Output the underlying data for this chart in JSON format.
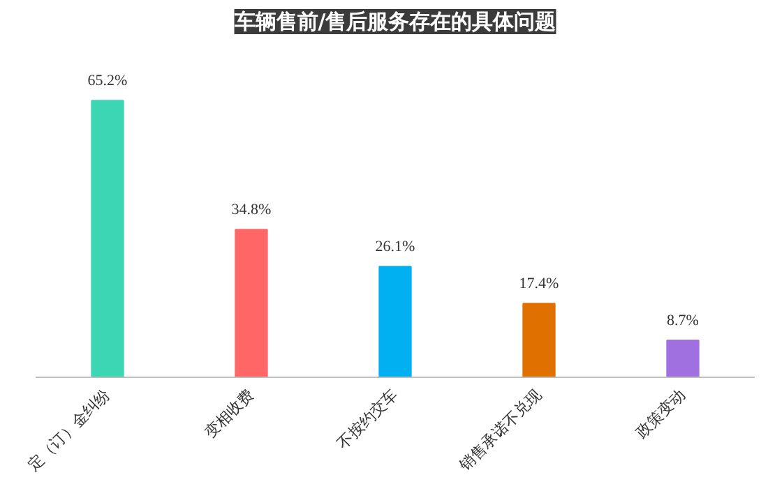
{
  "chart_data": {
    "type": "bar",
    "title": "车辆售前/售后服务存在的具体问题",
    "categories": [
      "定（订）金纠纷",
      "变相收费",
      "不按约交车",
      "销售承诺不兑现",
      "政策变动"
    ],
    "values": [
      65.2,
      34.8,
      26.1,
      17.4,
      8.7
    ],
    "colors": [
      "#3dd6b5",
      "#ff6666",
      "#00b0f0",
      "#e07000",
      "#a070e0"
    ],
    "value_labels": [
      "65.2%",
      "34.8%",
      "26.1%",
      "17.4%",
      "8.7%"
    ],
    "grid": false,
    "tick_labels": "x"
  }
}
